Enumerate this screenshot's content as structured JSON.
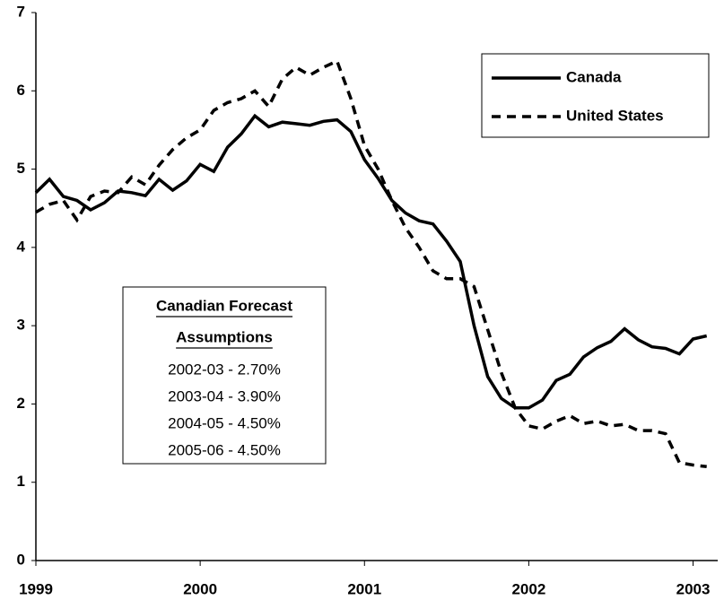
{
  "chart_data": {
    "type": "line",
    "x": [
      1999,
      1999.083,
      1999.167,
      1999.25,
      1999.333,
      1999.417,
      1999.5,
      1999.583,
      1999.667,
      1999.75,
      1999.833,
      1999.917,
      2000,
      2000.083,
      2000.167,
      2000.25,
      2000.333,
      2000.417,
      2000.5,
      2000.583,
      2000.667,
      2000.75,
      2000.833,
      2000.917,
      2001,
      2001.083,
      2001.167,
      2001.25,
      2001.333,
      2001.417,
      2001.5,
      2001.583,
      2001.667,
      2001.75,
      2001.833,
      2001.917,
      2002,
      2002.083,
      2002.167,
      2002.25,
      2002.333,
      2002.417,
      2002.5,
      2002.583,
      2002.667,
      2002.75,
      2002.833,
      2002.917,
      2003,
      2003.083
    ],
    "series": [
      {
        "name": "Canada",
        "color": "#000000",
        "dash": "solid",
        "values": [
          4.7,
          4.87,
          4.65,
          4.6,
          4.48,
          4.57,
          4.72,
          4.7,
          4.66,
          4.87,
          4.73,
          4.85,
          5.06,
          4.97,
          5.28,
          5.45,
          5.68,
          5.54,
          5.6,
          5.58,
          5.56,
          5.61,
          5.63,
          5.48,
          5.12,
          4.88,
          4.6,
          4.44,
          4.34,
          4.3,
          4.08,
          3.82,
          3.0,
          2.35,
          2.07,
          1.95,
          1.95,
          2.05,
          2.3,
          2.38,
          2.6,
          2.72,
          2.8,
          2.96,
          2.82,
          2.73,
          2.71,
          2.64,
          2.83,
          2.87
        ]
      },
      {
        "name": "United States",
        "color": "#000000",
        "dash": "dashed",
        "values": [
          4.45,
          4.55,
          4.6,
          4.35,
          4.65,
          4.72,
          4.7,
          4.9,
          4.8,
          5.05,
          5.25,
          5.4,
          5.5,
          5.75,
          5.85,
          5.9,
          6.0,
          5.8,
          6.15,
          6.3,
          6.2,
          6.3,
          6.38,
          5.9,
          5.3,
          5.0,
          4.6,
          4.25,
          4.0,
          3.7,
          3.6,
          3.6,
          3.5,
          2.95,
          2.4,
          1.95,
          1.72,
          1.68,
          1.78,
          1.85,
          1.75,
          1.78,
          1.72,
          1.74,
          1.66,
          1.66,
          1.62,
          1.25,
          1.22,
          1.2
        ]
      }
    ],
    "xlim": [
      1999,
      2003.15
    ],
    "xticks": [
      1999,
      2000,
      2001,
      2002,
      2003
    ],
    "ylim": [
      0,
      7
    ],
    "yticks": [
      0,
      1,
      2,
      3,
      4,
      5,
      6,
      7
    ],
    "grid": false,
    "legend": "upper-right",
    "annotation": {
      "title": [
        "Canadian Forecast",
        "Assumptions"
      ],
      "lines": [
        "2002-03 - 2.70%",
        "2003-04 - 3.90%",
        "2004-05 - 4.50%",
        "2005-06 - 4.50%"
      ]
    }
  }
}
